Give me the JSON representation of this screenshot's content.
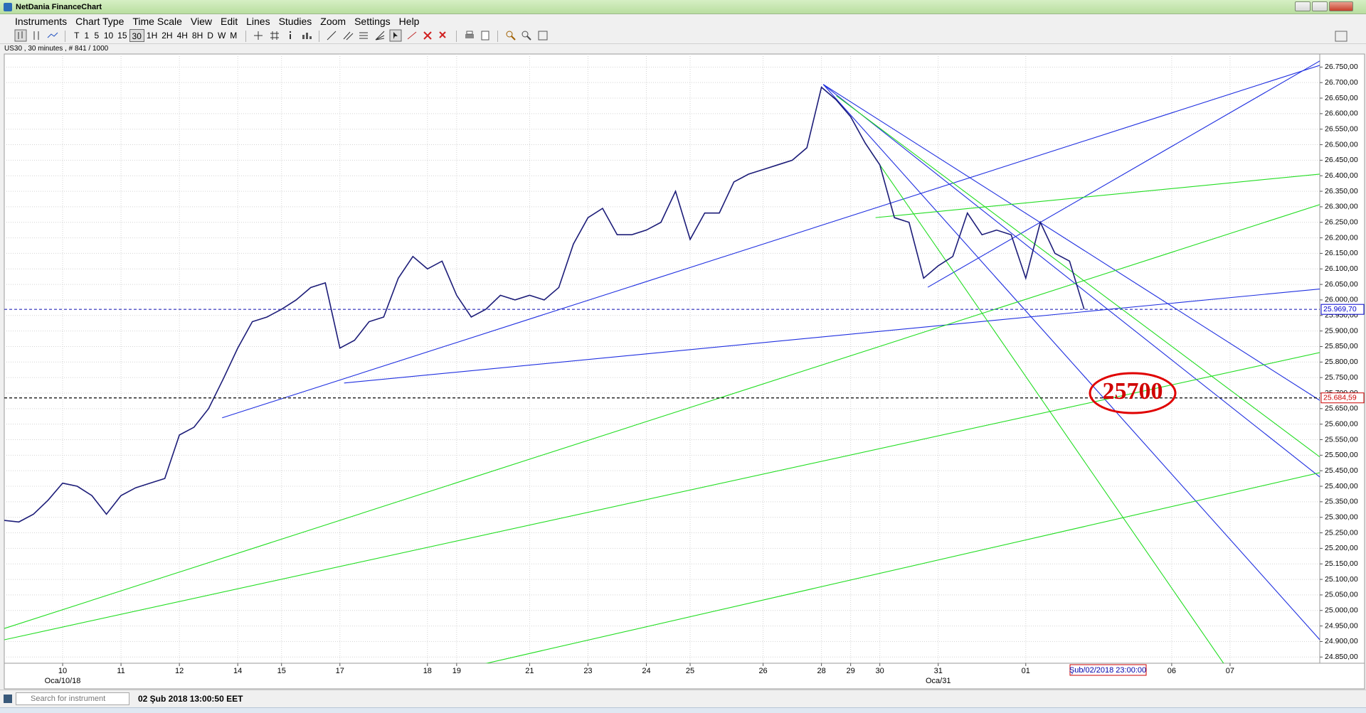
{
  "window": {
    "title": "NetDania FinanceChart"
  },
  "menu": [
    "Instruments",
    "Chart Type",
    "Time Scale",
    "View",
    "Edit",
    "Lines",
    "Studies",
    "Zoom",
    "Settings",
    "Help"
  ],
  "toolbar": {
    "intervals": [
      "T",
      "1",
      "5",
      "10",
      "15",
      "30",
      "1H",
      "2H",
      "4H",
      "8H",
      "D",
      "W",
      "M"
    ]
  },
  "chart_info": "US30 , 30 minutes , # 841 / 1000",
  "chart_data": {
    "type": "line",
    "categories": [
      null,
      null,
      null,
      null,
      "10",
      null,
      null,
      null,
      "11",
      null,
      null,
      null,
      "12",
      null,
      null,
      null,
      "14",
      null,
      null,
      "15",
      null,
      null,
      null,
      "17",
      null,
      null,
      null,
      null,
      null,
      "18",
      null,
      "19",
      null,
      null,
      null,
      null,
      "21",
      null,
      null,
      null,
      "23",
      null,
      null,
      null,
      "24",
      null,
      null,
      "25",
      null,
      null,
      null,
      null,
      "26",
      null,
      null,
      null,
      "28",
      null,
      "29",
      null,
      "30",
      null,
      null,
      null,
      "31",
      null,
      null,
      null,
      null,
      null,
      "01",
      null,
      null,
      null,
      null,
      null,
      null,
      null,
      null,
      null,
      "06",
      null,
      null,
      null,
      "07",
      null,
      null,
      null,
      null,
      null,
      null
    ],
    "sublabels": [
      null,
      null,
      null,
      null,
      "Oca/10/18",
      null,
      null,
      null,
      null,
      null,
      null,
      null,
      null,
      null,
      null,
      null,
      null,
      null,
      null,
      null,
      null,
      null,
      null,
      null,
      null,
      null,
      null,
      null,
      null,
      null,
      null,
      null,
      null,
      null,
      null,
      null,
      null,
      null,
      null,
      null,
      null,
      null,
      null,
      null,
      null,
      null,
      null,
      null,
      null,
      null,
      null,
      null,
      null,
      null,
      null,
      null,
      null,
      null,
      null,
      null,
      null,
      null,
      null,
      null,
      "Oca/31",
      null,
      null,
      null,
      null,
      null,
      null,
      null,
      null,
      null,
      null,
      null,
      null,
      null,
      null,
      null,
      null,
      null,
      null,
      null,
      null,
      null,
      null,
      null,
      null,
      null,
      null
    ],
    "values": [
      25290,
      25285,
      25310,
      25355,
      25410,
      25400,
      25370,
      25310,
      25370,
      25395,
      25410,
      25425,
      25565,
      25590,
      25650,
      25745,
      25845,
      25930,
      25945,
      25970,
      26000,
      26040,
      26055,
      25845,
      25870,
      25930,
      25945,
      26070,
      26140,
      26100,
      26125,
      26015,
      25945,
      25970,
      26015,
      26000,
      26015,
      26000,
      26040,
      26180,
      26265,
      26295,
      26210,
      26210,
      26225,
      26250,
      26350,
      26195,
      26280,
      26280,
      26380,
      26405,
      26420,
      26435,
      26450,
      26490,
      26685,
      26645,
      26590,
      26505,
      26435,
      26265,
      26250,
      26070,
      26110,
      26140,
      26280,
      26210,
      26225,
      26210,
      26070,
      26250,
      26150,
      26125,
      25970,
      null,
      null,
      null,
      null,
      null,
      null,
      null,
      null,
      null,
      null,
      null,
      null,
      null,
      null,
      null,
      null
    ],
    "color": "#1c1c78",
    "ylim": [
      24830,
      26792
    ],
    "yticks": [
      {
        "value": 24850,
        "label": "24.850,00"
      },
      {
        "value": 24900,
        "label": "24.900,00"
      },
      {
        "value": 24950,
        "label": "24.950,00"
      },
      {
        "value": 25000,
        "label": "25.000,00"
      },
      {
        "value": 25050,
        "label": "25.050,00"
      },
      {
        "value": 25100,
        "label": "25.100,00"
      },
      {
        "value": 25150,
        "label": "25.150,00"
      },
      {
        "value": 25200,
        "label": "25.200,00"
      },
      {
        "value": 25250,
        "label": "25.250,00"
      },
      {
        "value": 25300,
        "label": "25.300,00"
      },
      {
        "value": 25350,
        "label": "25.350,00"
      },
      {
        "value": 25400,
        "label": "25.400,00"
      },
      {
        "value": 25450,
        "label": "25.450,00"
      },
      {
        "value": 25500,
        "label": "25.500,00"
      },
      {
        "value": 25550,
        "label": "25.550,00"
      },
      {
        "value": 25600,
        "label": "25.600,00"
      },
      {
        "value": 25650,
        "label": "25.650,00"
      },
      {
        "value": 25700,
        "label": "25.700,00"
      },
      {
        "value": 25750,
        "label": "25.750,00"
      },
      {
        "value": 25800,
        "label": "25.800,00"
      },
      {
        "value": 25850,
        "label": "25.850,00"
      },
      {
        "value": 25900,
        "label": "25.900,00"
      },
      {
        "value": 25950,
        "label": "25.950,00"
      },
      {
        "value": 26000,
        "label": "26.000,00"
      },
      {
        "value": 26050,
        "label": "26.050,00"
      },
      {
        "value": 26100,
        "label": "26.100,00"
      },
      {
        "value": 26150,
        "label": "26.150,00"
      },
      {
        "value": 26200,
        "label": "26.200,00"
      },
      {
        "value": 26250,
        "label": "26.250,00"
      },
      {
        "value": 26300,
        "label": "26.300,00"
      },
      {
        "value": 26350,
        "label": "26.350,00"
      },
      {
        "value": 26400,
        "label": "26.400,00"
      },
      {
        "value": 26450,
        "label": "26.450,00"
      },
      {
        "value": 26500,
        "label": "26.500,00"
      },
      {
        "value": 26550,
        "label": "26.550,00"
      },
      {
        "value": 26600,
        "label": "26.600,00"
      },
      {
        "value": 26650,
        "label": "26.650,00"
      },
      {
        "value": 26700,
        "label": "26.700,00"
      },
      {
        "value": 26750,
        "label": "26.750,00"
      }
    ],
    "grid": true,
    "price_lines": [
      {
        "value": 25969.7,
        "label": "25.969,70",
        "color": "#0000cc",
        "line_color": "#2a2ab8"
      },
      {
        "value": 25684.59,
        "label": "25.684,59",
        "color": "#cc0000",
        "line_color": "#000000"
      }
    ],
    "cursor_time_label": "Şub/02/2018 23:00:00",
    "annotation": "25700"
  },
  "status_bar": {
    "search_placeholder": "Search for instrument",
    "datetime": "02 Şub 2018 13:00:50 EET"
  }
}
